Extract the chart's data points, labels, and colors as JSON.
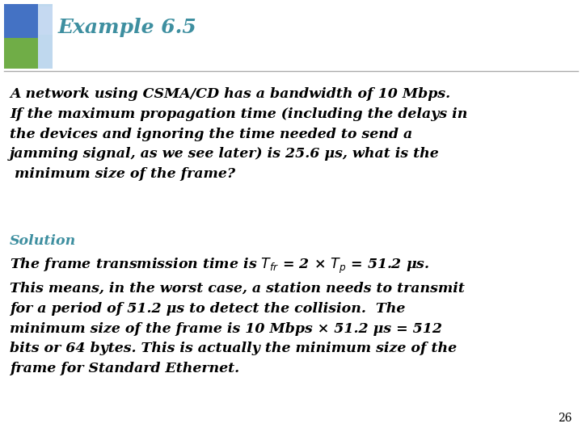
{
  "title": "Example 6.5",
  "title_color": "#3E8FA0",
  "background_color": "#FFFFFF",
  "page_number": "26",
  "solution_label": "Solution",
  "solution_color": "#3E8FA0",
  "header_line_color": "#AAAAAA"
}
